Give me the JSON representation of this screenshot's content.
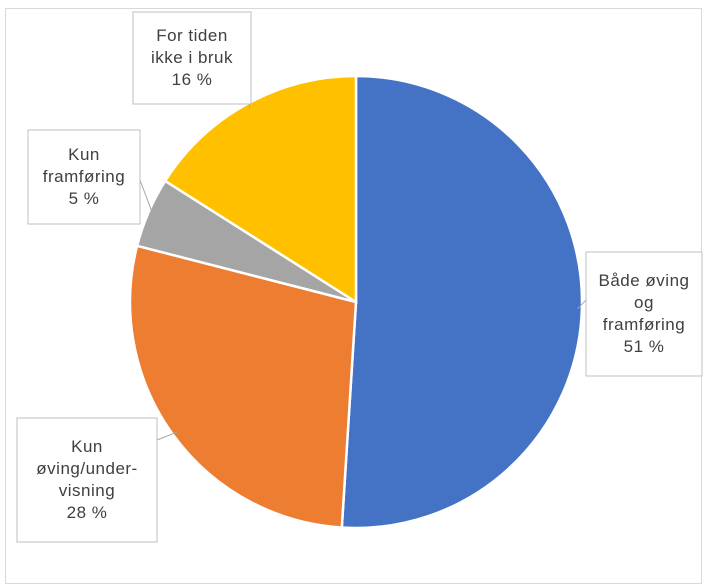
{
  "chart_data": {
    "type": "pie",
    "title": "",
    "slices": [
      {
        "label": [
          "Både øving",
          "og",
          "framføring"
        ],
        "value": 51,
        "value_label": "51 %",
        "color": "#4472C4"
      },
      {
        "label": [
          "Kun",
          "øving/under-",
          "visning"
        ],
        "value": 28,
        "value_label": "28 %",
        "color": "#ED7D31"
      },
      {
        "label": [
          "Kun",
          "framføring"
        ],
        "value": 5,
        "value_label": "5 %",
        "color": "#A5A5A5"
      },
      {
        "label": [
          "For tiden",
          "ikke i bruk"
        ],
        "value": 16,
        "value_label": "16 %",
        "color": "#FFC000"
      }
    ],
    "legend": "none",
    "data_labels": "callouts"
  }
}
